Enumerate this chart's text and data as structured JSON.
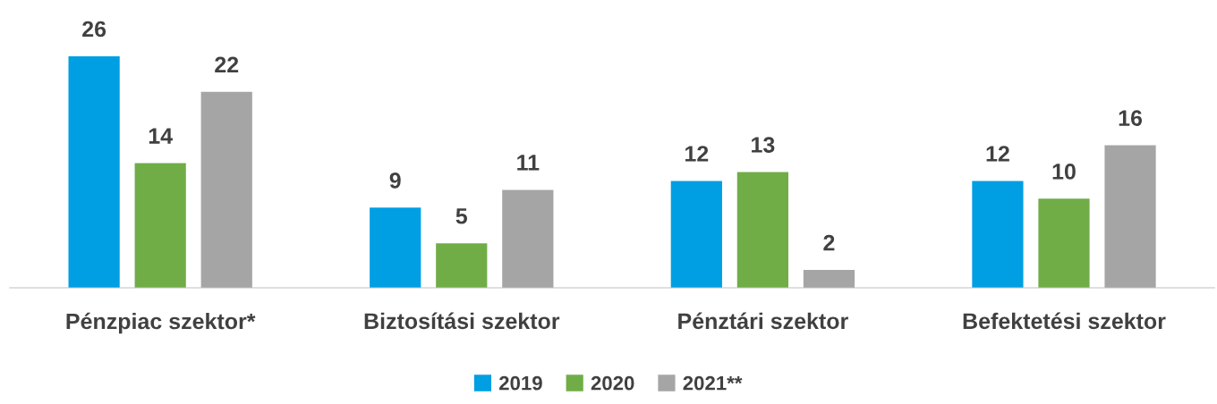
{
  "chart_data": {
    "type": "bar",
    "categories": [
      "Pénzpiac szektor*",
      "Biztosítási szektor",
      "Pénztári szektor",
      "Befektetési szektor"
    ],
    "series": [
      {
        "name": "2019",
        "color": "#009fe3",
        "values": [
          26,
          9,
          12,
          12
        ]
      },
      {
        "name": "2020",
        "color": "#70ad47",
        "values": [
          14,
          5,
          13,
          10
        ]
      },
      {
        "name": "2021**",
        "color": "#a5a5a5",
        "values": [
          22,
          11,
          2,
          16
        ]
      }
    ],
    "data_labels": true,
    "legend": "bottom",
    "grid": false
  }
}
